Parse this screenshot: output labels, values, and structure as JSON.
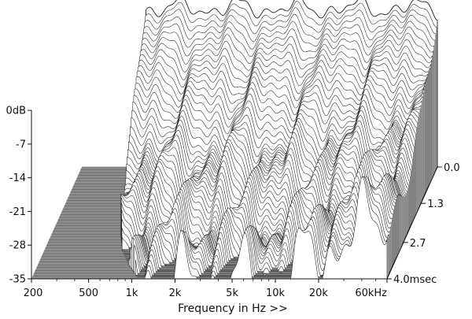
{
  "chart_data": {
    "type": "waterfall-3d",
    "title": "",
    "xlabel": "Frequency in Hz >>",
    "ylabel": "",
    "zlabel": "",
    "x_scale": "log",
    "x_ticks": [
      {
        "value": 200,
        "label": "200"
      },
      {
        "value": 500,
        "label": "500"
      },
      {
        "value": 1000,
        "label": "1k"
      },
      {
        "value": 2000,
        "label": "2k"
      },
      {
        "value": 5000,
        "label": "5k"
      },
      {
        "value": 10000,
        "label": "10k"
      },
      {
        "value": 20000,
        "label": "20k"
      },
      {
        "value": 60000,
        "label": "60kHz"
      }
    ],
    "xlim": [
      200,
      60000
    ],
    "y_ticks": [
      {
        "value": 0,
        "label": "0dB"
      },
      {
        "value": -7,
        "label": "-7"
      },
      {
        "value": -14,
        "label": "-14"
      },
      {
        "value": -21,
        "label": "-21"
      },
      {
        "value": -28,
        "label": "-28"
      },
      {
        "value": -35,
        "label": "-35"
      }
    ],
    "ylim": [
      -35,
      0
    ],
    "time_ticks": [
      {
        "value": 0.0,
        "label": "0.0"
      },
      {
        "value": 1.3,
        "label": "1.3"
      },
      {
        "value": 2.7,
        "label": "2.7"
      },
      {
        "value": 4.0,
        "label": "4.0msec"
      }
    ],
    "time_range_ms": [
      0,
      4.0
    ],
    "slices": 62,
    "envelope_start_freq_hz": [
      560,
      560,
      560,
      560,
      580,
      620,
      700,
      850,
      1100
    ],
    "decay_at_time_ms": [
      {
        "time": 0.0,
        "level_db": -2
      },
      {
        "time": 1.3,
        "level_db": -22
      },
      {
        "time": 2.7,
        "level_db": -32
      },
      {
        "time": 4.0,
        "level_db": -35
      }
    ],
    "grid": false,
    "legend": "none"
  }
}
